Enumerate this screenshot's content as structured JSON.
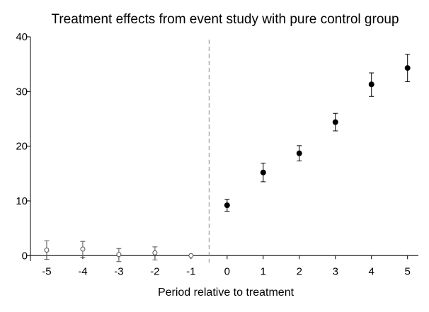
{
  "chart_data": {
    "type": "scatter",
    "title": "Treatment effects from event study with pure control group",
    "xlabel": "Period relative to treatment",
    "ylabel": "",
    "xlim": [
      -5.45,
      5.3
    ],
    "ylim": [
      -1,
      40
    ],
    "x_ticks": [
      -5,
      -4,
      -3,
      -2,
      -1,
      0,
      1,
      2,
      3,
      4,
      5
    ],
    "x_tick_labels": [
      "-5",
      "-4",
      "-3",
      "-2",
      "-1",
      "0",
      "1",
      "2",
      "3",
      "4",
      "5"
    ],
    "y_ticks": [
      0,
      10,
      20,
      30,
      40
    ],
    "y_tick_labels": [
      "0",
      "10",
      "20",
      "30",
      "40"
    ],
    "grid": false,
    "legend": "none",
    "treatment_line_x": -0.5,
    "series": [
      {
        "style": "hollow-circle",
        "color": "#555555",
        "x": [
          -5,
          -4,
          -3,
          -2,
          -1
        ],
        "y": [
          1.0,
          1.2,
          0.2,
          0.5,
          0.0
        ],
        "ci_low": [
          -0.7,
          -0.3,
          -1.1,
          -0.8,
          0.0
        ],
        "ci_high": [
          2.7,
          2.6,
          1.3,
          1.6,
          0.0
        ]
      },
      {
        "style": "filled-circle",
        "color": "#000000",
        "x": [
          0,
          1,
          2,
          3,
          4,
          5
        ],
        "y": [
          9.2,
          15.2,
          18.7,
          24.4,
          31.3,
          34.3
        ],
        "ci_low": [
          8.1,
          13.5,
          17.3,
          22.8,
          29.1,
          31.8
        ],
        "ci_high": [
          10.3,
          16.9,
          20.1,
          26.0,
          33.4,
          36.8
        ]
      }
    ]
  }
}
